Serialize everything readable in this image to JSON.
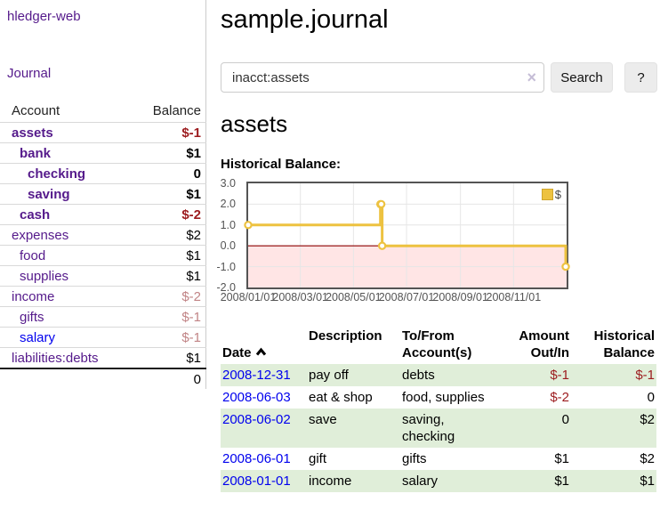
{
  "app": {
    "title": "hledger-web",
    "nav_journal": "Journal"
  },
  "sidebar": {
    "header": {
      "account": "Account",
      "balance": "Balance"
    },
    "accounts": [
      {
        "name": "assets",
        "balance": "$-1",
        "depth": 1,
        "bold": true,
        "value_style": "neg"
      },
      {
        "name": "bank",
        "balance": "$1",
        "depth": 2,
        "bold": true,
        "value_style": ""
      },
      {
        "name": "checking",
        "balance": "0",
        "depth": 3,
        "bold": true,
        "value_style": ""
      },
      {
        "name": "saving",
        "balance": "$1",
        "depth": 3,
        "bold": true,
        "value_style": ""
      },
      {
        "name": "cash",
        "balance": "$-2",
        "depth": 2,
        "bold": true,
        "value_style": "neg"
      },
      {
        "name": "expenses",
        "balance": "$2",
        "depth": 1,
        "bold": false,
        "value_style": ""
      },
      {
        "name": "food",
        "balance": "$1",
        "depth": 2,
        "bold": false,
        "value_style": ""
      },
      {
        "name": "supplies",
        "balance": "$1",
        "depth": 2,
        "bold": false,
        "value_style": ""
      },
      {
        "name": "income",
        "balance": "$-2",
        "depth": 1,
        "bold": false,
        "value_style": "dimneg"
      },
      {
        "name": "gifts",
        "balance": "$-1",
        "depth": 2,
        "bold": false,
        "value_style": "dimneg"
      },
      {
        "name": "salary",
        "balance": "$-1",
        "depth": 2,
        "bold": false,
        "value_style": "dimneg",
        "name_style": "blue"
      },
      {
        "name": "liabilities:debts",
        "balance": "$1",
        "depth": 1,
        "bold": false,
        "value_style": ""
      }
    ],
    "total": "0"
  },
  "main": {
    "title": "sample.journal",
    "search": {
      "value": "inacct:assets",
      "clear_icon": "×",
      "button": "Search",
      "help_button": "?"
    },
    "account_heading": "assets",
    "chart_label": "Historical Balance:"
  },
  "chart_data": {
    "type": "line",
    "title": "Historical Balance",
    "step": true,
    "legend": {
      "label": "$",
      "position": "top-right"
    },
    "series": [
      {
        "name": "$",
        "color": "#EDC240",
        "points": [
          {
            "date": "2008-01-01",
            "day": 0,
            "value": 1
          },
          {
            "date": "2008-06-01",
            "day": 152,
            "value": 2
          },
          {
            "date": "2008-06-02",
            "day": 153,
            "value": 2
          },
          {
            "date": "2008-06-03",
            "day": 154,
            "value": 0
          },
          {
            "date": "2008-12-31",
            "day": 365,
            "value": -1
          }
        ]
      }
    ],
    "x_domain_days": 366,
    "xticks": [
      {
        "label": "2008/01/01",
        "day": 0
      },
      {
        "label": "2008/03/01",
        "day": 60
      },
      {
        "label": "2008/05/01",
        "day": 121
      },
      {
        "label": "2008/07/01",
        "day": 182
      },
      {
        "label": "2008/09/01",
        "day": 244
      },
      {
        "label": "2008/11/01",
        "day": 305
      }
    ],
    "yticks": [
      {
        "label": "3.0",
        "value": 3
      },
      {
        "label": "2.0",
        "value": 2
      },
      {
        "label": "1.0",
        "value": 1
      },
      {
        "label": "0.0",
        "value": 0
      },
      {
        "label": "-1.0",
        "value": -1
      },
      {
        "label": "-2.0",
        "value": -2
      }
    ],
    "ylim": [
      -2,
      3
    ],
    "grid": true,
    "colors": {
      "line": "#EDC240",
      "negative_region": "rgba(255,0,0,0.10)",
      "zero_line": "#8b0000",
      "gridline": "#e6e6e6",
      "border": "#545454"
    }
  },
  "register": {
    "headers": {
      "date": "Date",
      "description": "Description",
      "accounts": "To/From\nAccount(s)",
      "amount": "Amount\nOut/In",
      "balance": "Historical\nBalance"
    },
    "rows": [
      {
        "date": "2008-12-31",
        "description": "pay off",
        "accounts": "debts",
        "amount": "$-1",
        "balance": "$-1",
        "amount_neg": true,
        "balance_neg": true,
        "shaded": true
      },
      {
        "date": "2008-06-03",
        "description": "eat & shop",
        "accounts": "food, supplies",
        "amount": "$-2",
        "balance": "0",
        "amount_neg": true,
        "balance_neg": false,
        "shaded": false
      },
      {
        "date": "2008-06-02",
        "description": "save",
        "accounts": "saving, checking",
        "amount": "0",
        "balance": "$2",
        "amount_neg": false,
        "balance_neg": false,
        "shaded": true
      },
      {
        "date": "2008-06-01",
        "description": "gift",
        "accounts": "gifts",
        "amount": "$1",
        "balance": "$2",
        "amount_neg": false,
        "balance_neg": false,
        "shaded": false
      },
      {
        "date": "2008-01-01",
        "description": "income",
        "accounts": "salary",
        "amount": "$1",
        "balance": "$1",
        "amount_neg": false,
        "balance_neg": false,
        "shaded": true
      }
    ]
  }
}
